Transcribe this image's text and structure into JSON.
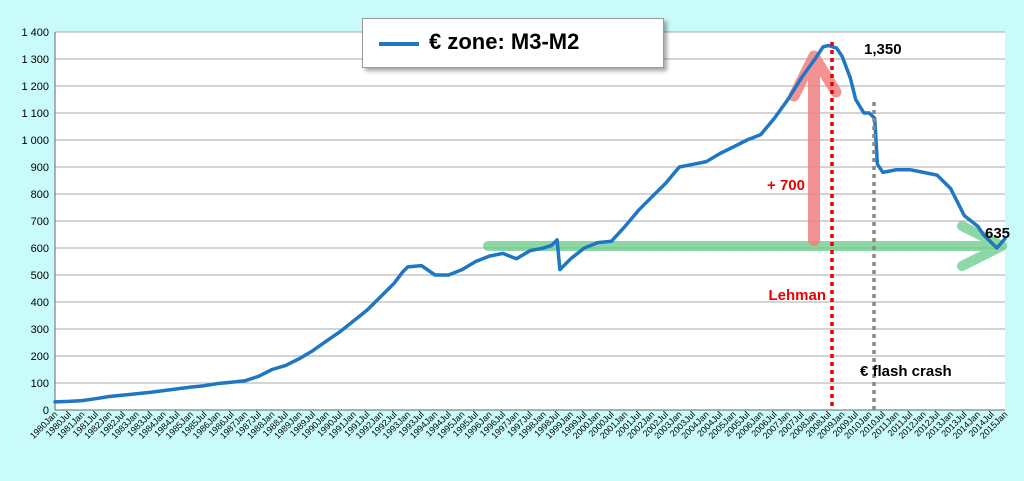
{
  "chart_data": {
    "type": "line",
    "title": "€ zone: M3-M2",
    "ylim": [
      0,
      1400
    ],
    "yticks": [
      "0",
      "100",
      "200",
      "300",
      "400",
      "500",
      "600",
      "700",
      "800",
      "900",
      "1 000",
      "1 100",
      "1 200",
      "1 300",
      "1 400"
    ],
    "xticks": [
      "1980Jan",
      "1980Jul",
      "1981Jan",
      "1981Jul",
      "1982Jan",
      "1982Jul",
      "1983Jan",
      "1983Jul",
      "1984Jan",
      "1984Jul",
      "1985Jan",
      "1985Jul",
      "1986Jan",
      "1986Jul",
      "1987Jan",
      "1987Jul",
      "1988Jan",
      "1988Jul",
      "1989Jan",
      "1989Jul",
      "1990Jan",
      "1990Jul",
      "1991Jan",
      "1991Jul",
      "1992Jan",
      "1992Jul",
      "1993Jan",
      "1993Jul",
      "1994Jan",
      "1994Jul",
      "1995Jan",
      "1995Jul",
      "1996Jan",
      "1996Jul",
      "1997Jan",
      "1997Jul",
      "1998Jan",
      "1998Jul",
      "1999Jan",
      "1999Jul",
      "2000Jan",
      "2000Jul",
      "2001Jan",
      "2001Jul",
      "2002Jan",
      "2002Jul",
      "2003Jan",
      "2003Jul",
      "2004Jan",
      "2004Jul",
      "2005Jan",
      "2005Jul",
      "2006Jan",
      "2006Jul",
      "2007Jan",
      "2007Jul",
      "2008Jan",
      "2008Jul",
      "2009Jan",
      "2009Jul",
      "2010Jan",
      "2010Jul",
      "2011Jan",
      "2011Jul",
      "2012Jan",
      "2012Jul",
      "2013Jan",
      "2013Jul",
      "2014Jan",
      "2014Jul",
      "2015Jan"
    ],
    "grid": true,
    "series": [
      {
        "name": "€ zone: M3-M2",
        "color": "#1f77c4",
        "x": [
          1980.0,
          1980.5,
          1981.0,
          1981.5,
          1982.0,
          1982.5,
          1983.0,
          1983.5,
          1984.0,
          1984.5,
          1985.0,
          1985.5,
          1986.0,
          1986.5,
          1987.0,
          1987.5,
          1988.0,
          1988.5,
          1989.0,
          1989.5,
          1990.0,
          1990.5,
          1991.0,
          1991.5,
          1992.0,
          1992.5,
          1992.8,
          1993.0,
          1993.5,
          1994.0,
          1994.5,
          1995.0,
          1995.5,
          1996.0,
          1996.5,
          1997.0,
          1997.5,
          1998.0,
          1998.3,
          1998.5,
          1998.6,
          1999.0,
          1999.5,
          2000.0,
          2000.5,
          2001.0,
          2001.5,
          2002.0,
          2002.5,
          2003.0,
          2003.5,
          2004.0,
          2004.5,
          2005.0,
          2005.5,
          2006.0,
          2006.5,
          2007.0,
          2007.5,
          2008.0,
          2008.3,
          2008.5,
          2008.8,
          2009.0,
          2009.3,
          2009.5,
          2009.8,
          2010.0,
          2010.2,
          2010.3,
          2010.5,
          2011.0,
          2011.5,
          2012.0,
          2012.5,
          2013.0,
          2013.5,
          2014.0,
          2014.2,
          2014.5,
          2014.7,
          2015.0
        ],
        "y": [
          30,
          32,
          35,
          42,
          50,
          55,
          60,
          65,
          72,
          78,
          85,
          90,
          98,
          103,
          108,
          125,
          150,
          165,
          190,
          220,
          255,
          290,
          330,
          370,
          420,
          470,
          510,
          530,
          535,
          500,
          500,
          520,
          550,
          570,
          580,
          560,
          590,
          600,
          610,
          630,
          520,
          560,
          600,
          620,
          625,
          680,
          740,
          790,
          840,
          900,
          910,
          920,
          950,
          975,
          1000,
          1020,
          1080,
          1150,
          1230,
          1300,
          1345,
          1350,
          1340,
          1310,
          1230,
          1150,
          1100,
          1100,
          1080,
          910,
          880,
          890,
          890,
          880,
          870,
          820,
          720,
          680,
          650,
          620,
          600,
          635
        ]
      }
    ],
    "annotations": {
      "plus700": "+ 700",
      "lehman": "Lehman",
      "flash_crash": "€  flash crash",
      "peak_value": "1,350",
      "end_value": "635"
    },
    "colors": {
      "background": "#c9fbfb",
      "line": "#1f77c4",
      "red_arrow": "#f08080",
      "green_arrow": "#66cc88",
      "lehman_line": "#ee0000",
      "flash_line": "#888888"
    }
  }
}
